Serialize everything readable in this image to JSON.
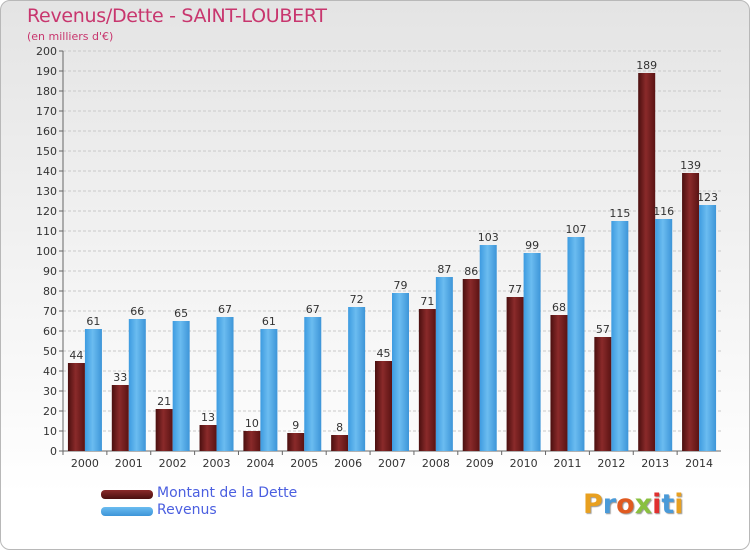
{
  "title": "Revenus/Dette - SAINT-LOUBERT",
  "subtitle": "(en milliers d'€)",
  "logo_text": "Proxiti",
  "colors": {
    "dette": "#6b1a1a",
    "revenus": "#4aa6e8",
    "title": "#c8366e"
  },
  "chart_data": {
    "type": "bar",
    "title": "Revenus/Dette - SAINT-LOUBERT",
    "ylabel": "(en milliers d'€)",
    "xlabel": "",
    "ylim": [
      0,
      200
    ],
    "y_ticks": [
      0,
      10,
      20,
      30,
      40,
      50,
      60,
      70,
      80,
      90,
      100,
      110,
      120,
      130,
      140,
      150,
      160,
      170,
      180,
      190,
      200
    ],
    "grid": true,
    "legend_position": "bottom-left",
    "categories": [
      "2000",
      "2001",
      "2002",
      "2003",
      "2004",
      "2005",
      "2006",
      "2007",
      "2008",
      "2009",
      "2010",
      "2011",
      "2012",
      "2013",
      "2014"
    ],
    "series": [
      {
        "name": "Montant de la Dette",
        "color": "#6b1a1a",
        "values": [
          44,
          33,
          21,
          13,
          10,
          9,
          8,
          45,
          71,
          86,
          77,
          68,
          57,
          189,
          139
        ]
      },
      {
        "name": "Revenus",
        "color": "#4aa6e8",
        "values": [
          61,
          66,
          65,
          67,
          61,
          67,
          72,
          79,
          87,
          103,
          99,
          107,
          115,
          116,
          123
        ]
      }
    ]
  }
}
